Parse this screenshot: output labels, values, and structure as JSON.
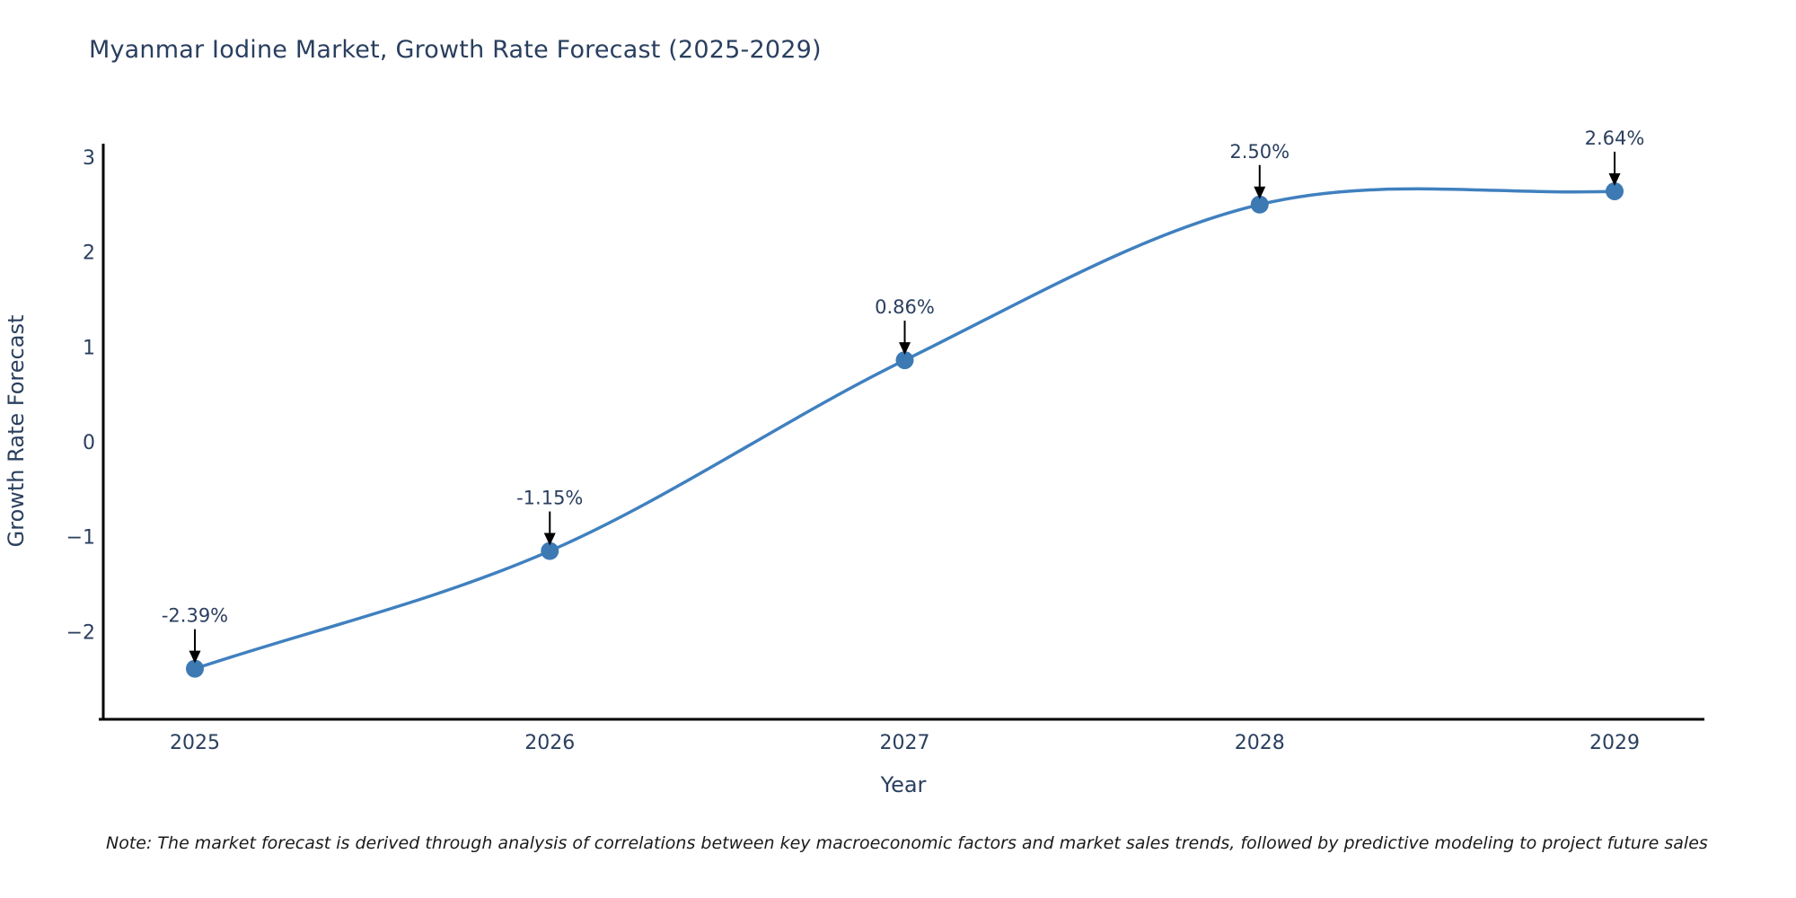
{
  "title": "Myanmar Iodine Market, Growth Rate Forecast (2025-2029)",
  "note": "Note: The market forecast is derived through analysis of correlations between key macroeconomic factors and market sales trends, followed by predictive modeling to project future sales",
  "chart_data": {
    "type": "line",
    "title": "Myanmar Iodine Market, Growth Rate Forecast (2025-2029)",
    "xlabel": "Year",
    "ylabel": "Growth Rate Forecast",
    "x": [
      2025,
      2026,
      2027,
      2028,
      2029
    ],
    "values": [
      -2.39,
      -1.15,
      0.86,
      2.5,
      2.64
    ],
    "point_labels": [
      "-2.39%",
      "-1.15%",
      "0.86%",
      "2.50%",
      "2.64%"
    ],
    "yticks": [
      -2,
      -1,
      0,
      1,
      2,
      3
    ],
    "xlim": [
      2024.74,
      2029.25
    ],
    "ylim": [
      -2.93,
      3.14
    ],
    "line_shape": "spline",
    "grid": false,
    "legend": "none",
    "colors": {
      "line": "#4080bf",
      "marker": "#3d7ab4",
      "axis": "#000000",
      "text": "#2a3f5f",
      "annotation_arrow": "#000000",
      "background": "#ffffff"
    }
  }
}
